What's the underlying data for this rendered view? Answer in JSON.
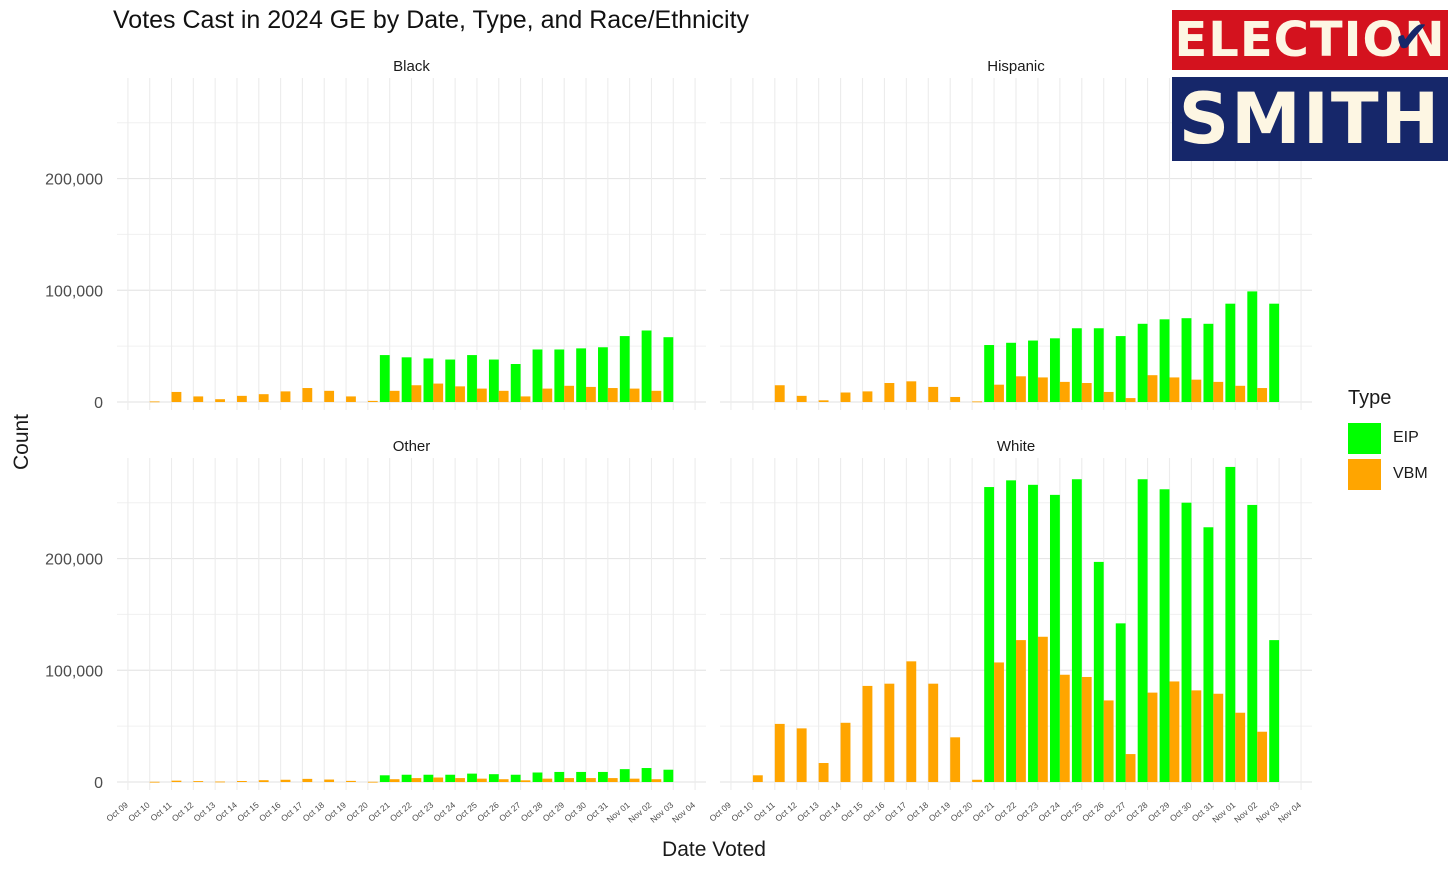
{
  "chart_data": {
    "type": "bar",
    "title": "Votes Cast in 2024 GE by Date, Type, and Race/Ethnicity",
    "xlabel": "Date Voted",
    "ylabel": "Count",
    "ylim": [
      0,
      290000
    ],
    "yticks": [
      0,
      100000,
      200000
    ],
    "ytick_labels": [
      "0",
      "100,000",
      "200,000"
    ],
    "grid": true,
    "legend": {
      "title": "Type",
      "position": "right"
    },
    "categories": [
      "Oct 09",
      "Oct 10",
      "Oct 11",
      "Oct 12",
      "Oct 13",
      "Oct 14",
      "Oct 15",
      "Oct 16",
      "Oct 17",
      "Oct 18",
      "Oct 19",
      "Oct 20",
      "Oct 21",
      "Oct 22",
      "Oct 23",
      "Oct 24",
      "Oct 25",
      "Oct 26",
      "Oct 27",
      "Oct 28",
      "Oct 29",
      "Oct 30",
      "Oct 31",
      "Nov 01",
      "Nov 02",
      "Nov 03",
      "Nov 04"
    ],
    "series_meta": [
      {
        "name": "EIP",
        "color": "#00ff00"
      },
      {
        "name": "VBM",
        "color": "#ffa500"
      }
    ],
    "facets": [
      {
        "name": "Black",
        "series": [
          {
            "name": "EIP",
            "values": [
              0,
              0,
              0,
              0,
              0,
              0,
              0,
              0,
              0,
              0,
              0,
              0,
              42000,
              40000,
              39000,
              38000,
              42000,
              38000,
              34000,
              47000,
              47000,
              48000,
              49000,
              59000,
              64000,
              58000,
              0
            ]
          },
          {
            "name": "VBM",
            "values": [
              0,
              500,
              9000,
              5000,
              2500,
              5500,
              7000,
              9500,
              12500,
              10000,
              5000,
              1000,
              10000,
              15000,
              16500,
              14000,
              12000,
              10000,
              5000,
              12000,
              14500,
              13500,
              12500,
              12000,
              10000,
              0,
              0
            ]
          }
        ]
      },
      {
        "name": "Hispanic",
        "series": [
          {
            "name": "EIP",
            "values": [
              0,
              0,
              0,
              0,
              0,
              0,
              0,
              0,
              0,
              0,
              0,
              0,
              51000,
              53000,
              55000,
              57000,
              66000,
              66000,
              59000,
              70000,
              74000,
              75000,
              70000,
              88000,
              99000,
              88000,
              0
            ]
          },
          {
            "name": "VBM",
            "values": [
              0,
              0,
              15000,
              5500,
              1500,
              8500,
              9500,
              17000,
              18500,
              13500,
              4500,
              500,
              15500,
              23000,
              22000,
              18000,
              17000,
              9000,
              3500,
              24000,
              22000,
              20000,
              18000,
              14500,
              12500,
              0,
              0
            ]
          }
        ]
      },
      {
        "name": "Other",
        "series": [
          {
            "name": "EIP",
            "values": [
              0,
              0,
              0,
              0,
              0,
              0,
              0,
              0,
              0,
              0,
              0,
              0,
              6000,
              6500,
              6500,
              6500,
              7500,
              7000,
              6500,
              8500,
              9000,
              9000,
              9000,
              11500,
              12500,
              11000,
              0
            ]
          },
          {
            "name": "VBM",
            "values": [
              0,
              200,
              1200,
              800,
              400,
              900,
              1600,
              2000,
              2800,
              2200,
              1000,
              200,
              2500,
              3500,
              4000,
              3500,
              3000,
              2500,
              1500,
              3000,
              3500,
              3500,
              3500,
              3000,
              2500,
              0,
              0
            ]
          }
        ]
      },
      {
        "name": "White",
        "series": [
          {
            "name": "EIP",
            "values": [
              0,
              0,
              0,
              0,
              0,
              0,
              0,
              0,
              0,
              0,
              0,
              0,
              264000,
              270000,
              266000,
              257000,
              271000,
              197000,
              142000,
              271000,
              262000,
              250000,
              228000,
              282000,
              248000,
              127000,
              0
            ]
          },
          {
            "name": "VBM",
            "values": [
              0,
              6000,
              52000,
              48000,
              17000,
              53000,
              86000,
              88000,
              108000,
              88000,
              40000,
              2000,
              107000,
              127000,
              130000,
              96000,
              94000,
              73000,
              25000,
              80000,
              90000,
              82000,
              79000,
              62000,
              45000,
              0,
              0
            ]
          }
        ]
      }
    ]
  },
  "logo": {
    "line1": "ELECTION",
    "line2": "SMITH"
  }
}
